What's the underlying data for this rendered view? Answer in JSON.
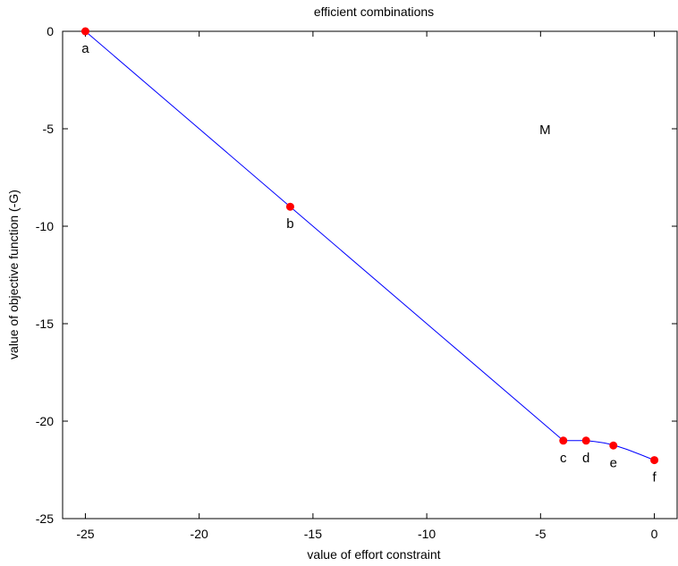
{
  "chart_data": {
    "type": "line",
    "title": "efficient combinations",
    "xlabel": "value of effort constraint",
    "ylabel": "value of objective function (-G)",
    "xlim": [
      -26,
      1
    ],
    "ylim": [
      -25,
      0
    ],
    "xticks": [
      -25,
      -20,
      -15,
      -10,
      -5,
      0
    ],
    "yticks": [
      0,
      -5,
      -10,
      -15,
      -20,
      -25
    ],
    "grid": false,
    "annotation": "M",
    "annotation_position": {
      "x": -4.8,
      "y": -5
    },
    "line_color": "#0000ff",
    "point_color": "#ff0000",
    "curve": [
      {
        "x": -25,
        "y": 0
      },
      {
        "x": -16,
        "y": -9
      },
      {
        "x": -4,
        "y": -21
      },
      {
        "x": -3.6,
        "y": -21
      },
      {
        "x": -3.2,
        "y": -21
      },
      {
        "x": -3,
        "y": -21
      },
      {
        "x": -2.6,
        "y": -21.05
      },
      {
        "x": -2.2,
        "y": -21.12
      },
      {
        "x": -1.8,
        "y": -21.22
      },
      {
        "x": -1.2,
        "y": -21.45
      },
      {
        "x": -0.6,
        "y": -21.72
      },
      {
        "x": 0,
        "y": -22
      }
    ],
    "points": [
      {
        "label": "a",
        "x": -25,
        "y": 0
      },
      {
        "label": "b",
        "x": -16,
        "y": -9
      },
      {
        "label": "c",
        "x": -4,
        "y": -21
      },
      {
        "label": "d",
        "x": -3,
        "y": -21
      },
      {
        "label": "e",
        "x": -1.8,
        "y": -21.25
      },
      {
        "label": "f",
        "x": 0,
        "y": -22
      }
    ]
  }
}
